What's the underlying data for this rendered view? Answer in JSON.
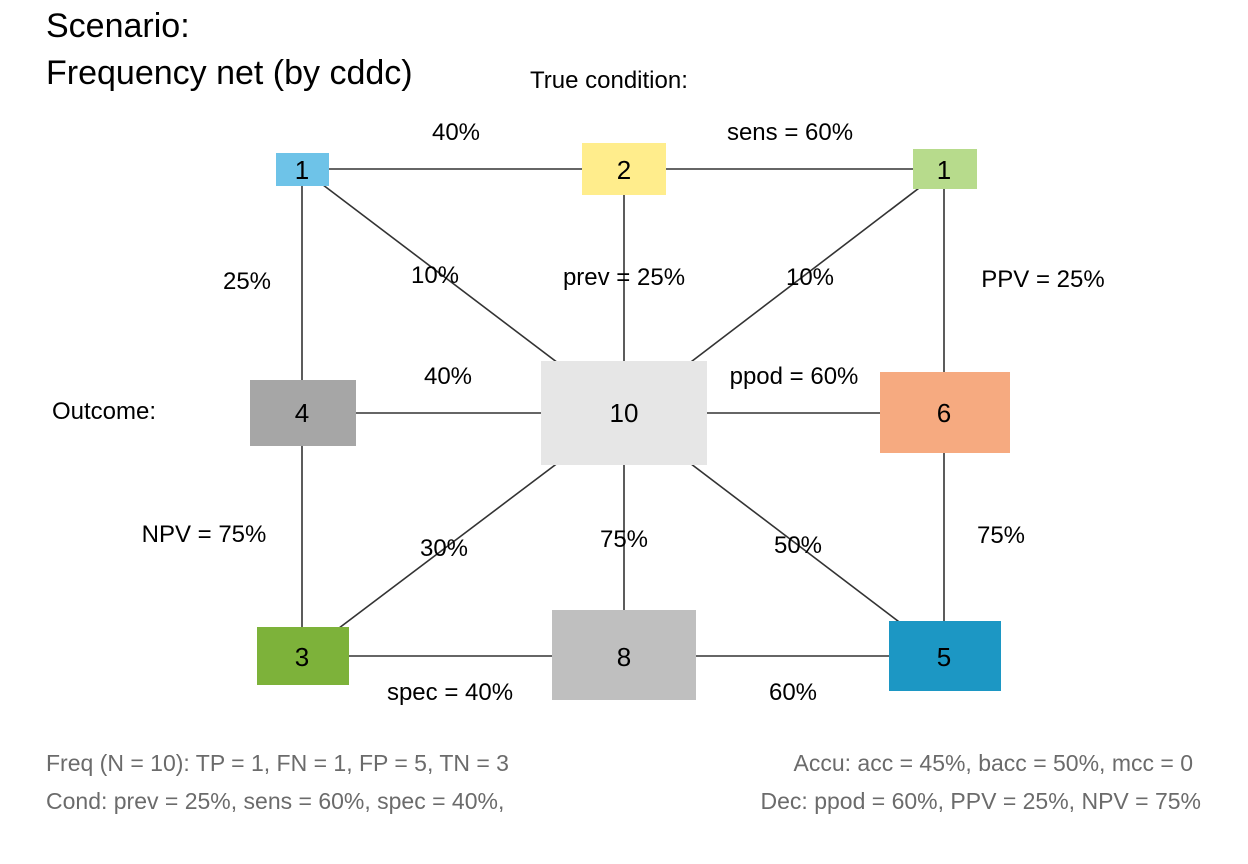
{
  "title": {
    "line1": "Scenario:",
    "line2": "Frequency net (by cddc)"
  },
  "labels": {
    "true_condition": "True condition:",
    "outcome": "Outcome:"
  },
  "nodes": {
    "top_left": {
      "value": "1",
      "color": "#6EC3E8"
    },
    "top_mid": {
      "value": "2",
      "color": "#FFED8C"
    },
    "top_right": {
      "value": "1",
      "color": "#B7DB8C"
    },
    "mid_left": {
      "value": "4",
      "color": "#A6A6A6"
    },
    "center": {
      "value": "10",
      "color": "#E6E6E6"
    },
    "mid_right": {
      "value": "6",
      "color": "#F6AA80"
    },
    "bot_left": {
      "value": "3",
      "color": "#7DB23A"
    },
    "bot_mid": {
      "value": "8",
      "color": "#BFBFBF"
    },
    "bot_right": {
      "value": "5",
      "color": "#1C97C4"
    }
  },
  "edge_labels": {
    "top_left_mid": "40%",
    "top_mid_right": "sens = 60%",
    "left_upper": "25%",
    "diag_top_left": "10%",
    "prev": "prev = 25%",
    "diag_top_right": "10%",
    "right_upper": "PPV = 25%",
    "mid_left_center": "40%",
    "ppod": "ppod = 60%",
    "npv": "NPV = 75%",
    "diag_bot_left": "30%",
    "center_bot": "75%",
    "diag_bot_right": "50%",
    "right_lower": "75%",
    "spec": "spec = 40%",
    "bot_mid_right": "60%"
  },
  "footer": {
    "freq": "Freq (N = 10):  TP = 1, FN = 1, FP = 5, TN = 3",
    "accu": "Accu:  acc = 45%, bacc = 50%, mcc = 0",
    "cond": "Cond:  prev = 25%, sens = 60%, spec = 40%,",
    "dec": "Dec:  ppod = 60%, PPV = 25%, NPV = 75%"
  }
}
